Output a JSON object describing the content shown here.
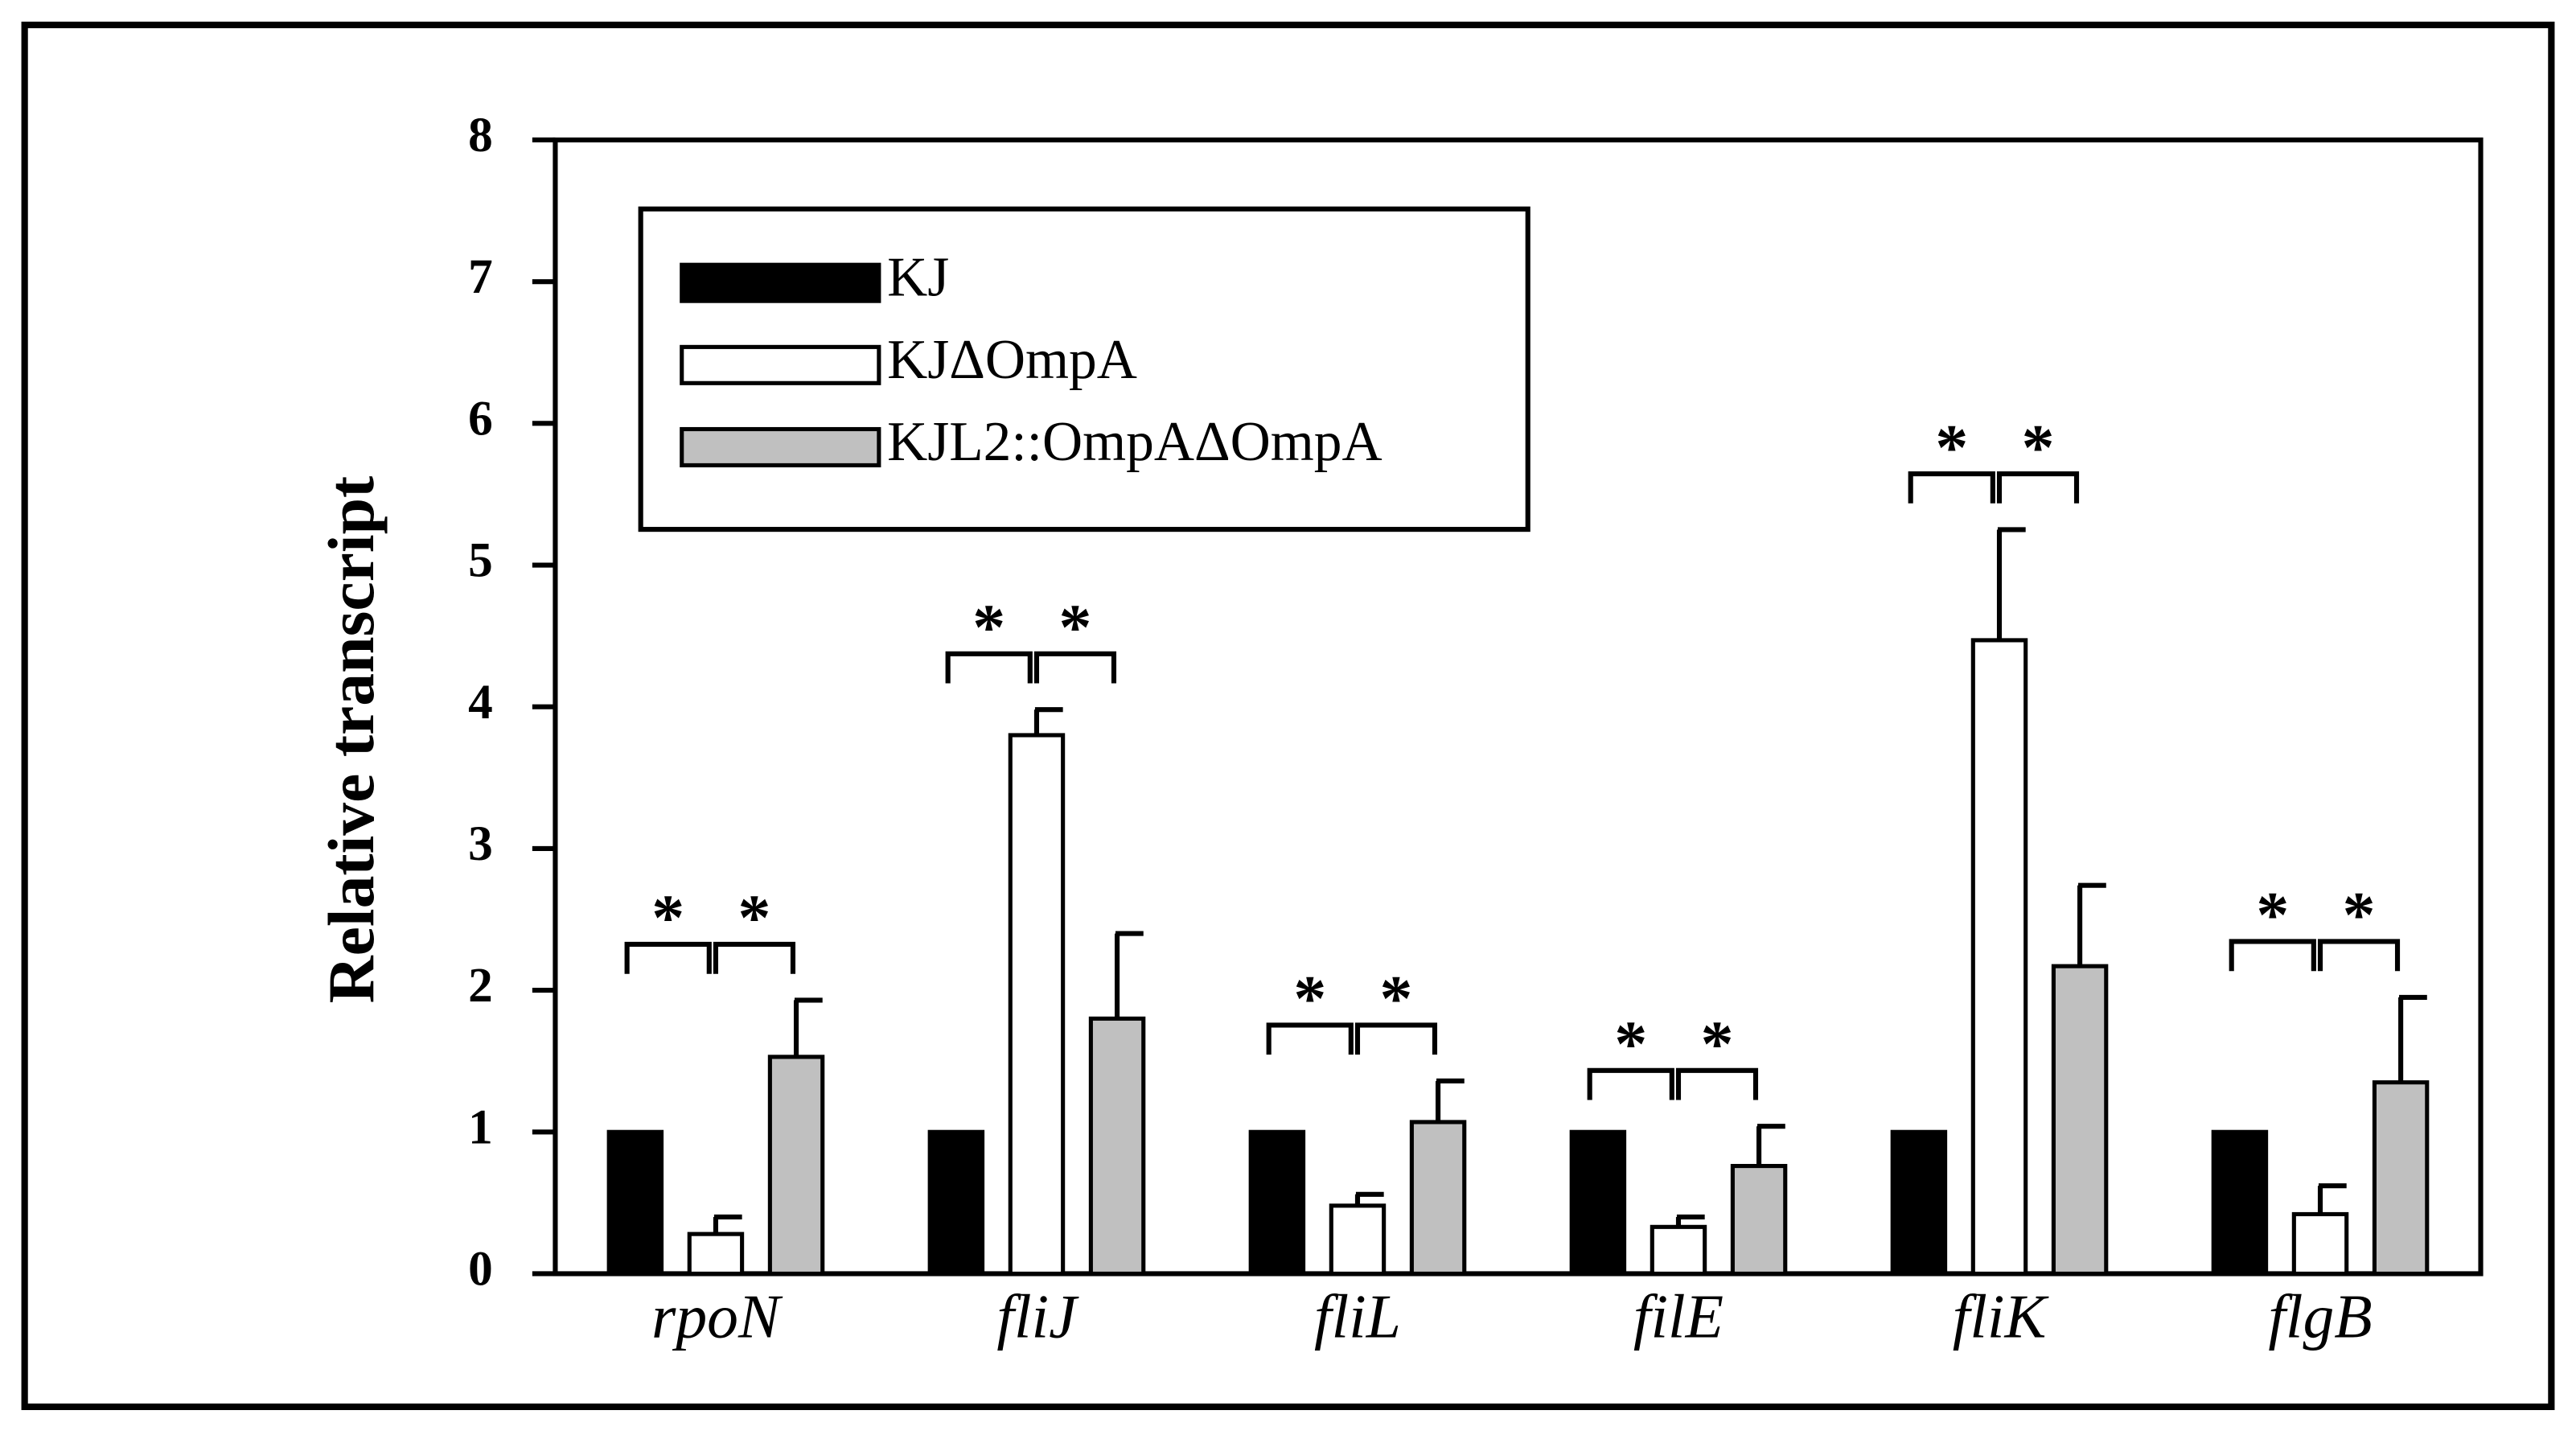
{
  "chart_data": {
    "type": "bar",
    "y_label": "Relative transcript",
    "categories": [
      "rpoN",
      "fliJ",
      "fliL",
      "filE",
      "fliK",
      "flgB"
    ],
    "series": [
      {
        "name": "KJ",
        "color": "#000000",
        "values": [
          1.0,
          1.0,
          1.0,
          1.0,
          1.0,
          1.0
        ]
      },
      {
        "name": "KJΔOmpA",
        "color": "#ffffff",
        "values": [
          0.28,
          3.8,
          0.48,
          0.33,
          4.47,
          0.42
        ],
        "errors": [
          0.12,
          0.18,
          0.08,
          0.07,
          0.78,
          0.2
        ]
      },
      {
        "name": "KJL2::OmpAΔOmpA",
        "color": "#c0c0c0",
        "values": [
          1.53,
          1.8,
          1.07,
          0.76,
          2.17,
          1.35
        ],
        "errors": [
          0.4,
          0.6,
          0.29,
          0.28,
          0.57,
          0.6
        ]
      }
    ],
    "significance": [
      [
        "*",
        "*"
      ],
      [
        "*",
        "*"
      ],
      [
        "*",
        "*"
      ],
      [
        "*",
        "*"
      ],
      [
        "*",
        "*"
      ],
      [
        "*",
        "*"
      ]
    ],
    "ylim": [
      0,
      8
    ],
    "yticks": [
      0,
      1,
      2,
      3,
      4,
      5,
      6,
      7,
      8
    ],
    "legend": "upper left"
  }
}
